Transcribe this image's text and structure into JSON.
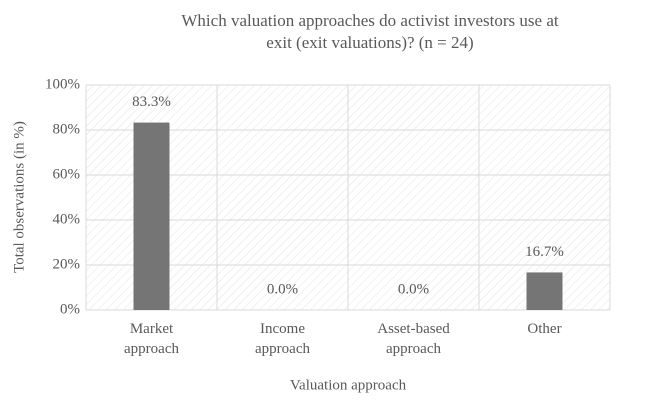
{
  "chart_data": {
    "type": "bar",
    "title": [
      "Which valuation approaches do activist investors use at",
      "exit (exit valuations)? (n = 24)"
    ],
    "categories": [
      "Market approach",
      "Income approach",
      "Asset-based approach",
      "Other"
    ],
    "values": [
      83.3,
      0,
      0,
      16.7
    ],
    "value_labels": [
      "83.3%",
      "0.0%",
      "0.0%",
      "16.7%"
    ],
    "color": "#757575",
    "ylim": [
      0,
      100
    ],
    "yticks": [
      {
        "value": 0,
        "label": "0%"
      },
      {
        "value": 20,
        "label": "20%"
      },
      {
        "value": 40,
        "label": "40%"
      },
      {
        "value": 60,
        "label": "60%"
      },
      {
        "value": 80,
        "label": "80%"
      },
      {
        "value": 100,
        "label": "100%"
      }
    ],
    "grid": true,
    "y_label": "Total observations (in %)",
    "x_label": "Valuation approach"
  }
}
